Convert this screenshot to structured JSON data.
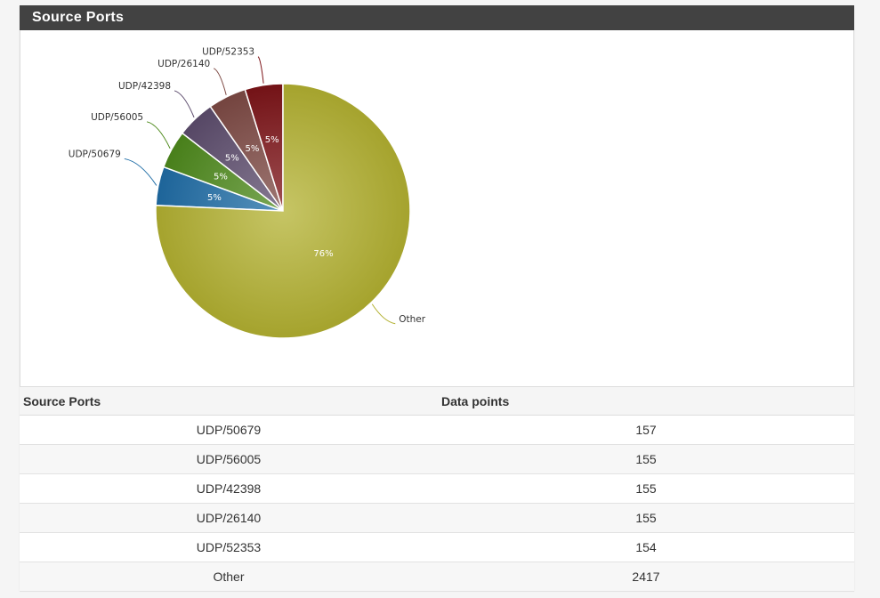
{
  "panel": {
    "title": "Source Ports"
  },
  "table": {
    "headers": [
      "Source Ports",
      "Data points"
    ],
    "rows": [
      {
        "port": "UDP/50679",
        "count": "157"
      },
      {
        "port": "UDP/56005",
        "count": "155"
      },
      {
        "port": "UDP/42398",
        "count": "155"
      },
      {
        "port": "UDP/26140",
        "count": "155"
      },
      {
        "port": "UDP/52353",
        "count": "154"
      },
      {
        "port": "Other",
        "count": "2417"
      }
    ]
  },
  "chart_data": {
    "type": "pie",
    "title": "",
    "slices": [
      {
        "label": "UDP/50679",
        "value": 157,
        "pct_label": "5%",
        "color": "#1f6da6"
      },
      {
        "label": "UDP/56005",
        "value": 155,
        "pct_label": "5%",
        "color": "#4e8a1c"
      },
      {
        "label": "UDP/42398",
        "value": 155,
        "pct_label": "5%",
        "color": "#5e4d6e"
      },
      {
        "label": "UDP/26140",
        "value": 155,
        "pct_label": "5%",
        "color": "#7e4a44"
      },
      {
        "label": "UDP/52353",
        "value": 154,
        "pct_label": "5%",
        "color": "#7d1418"
      },
      {
        "label": "Other",
        "value": 2417,
        "pct_label": "76%",
        "color": "#b3b131"
      }
    ]
  }
}
